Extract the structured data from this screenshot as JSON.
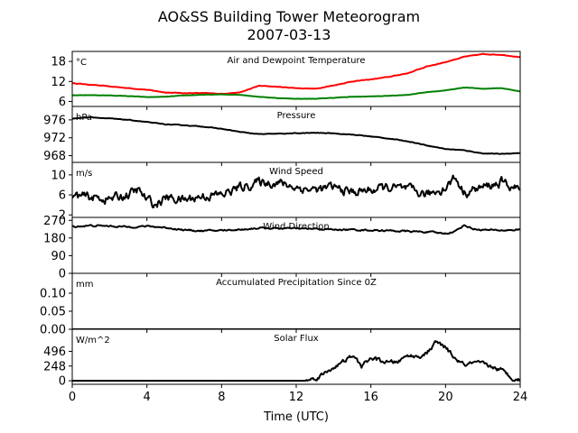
{
  "figure": {
    "title_line1": "AO&SS Building Tower Meteorogram",
    "title_line2": "2007-03-13",
    "xlabel": "Time (UTC)"
  },
  "chart_data": {
    "type": "line",
    "xlim": [
      0,
      24
    ],
    "xticks": [
      0,
      4,
      8,
      12,
      16,
      20,
      24
    ],
    "panels": [
      {
        "id": "temperature",
        "label": "Air and Dewpoint Temperature",
        "unit": "°C",
        "ylim": [
          4.5,
          21
        ],
        "yticks": [
          6,
          12,
          18
        ],
        "series": [
          {
            "color": "#ff0000",
            "noise": 0.08,
            "x": [
              0,
              1,
              2,
              3,
              4,
              5,
              6,
              7,
              8,
              9,
              10,
              11,
              12,
              13,
              14,
              15,
              16,
              17,
              18,
              19,
              20,
              21,
              22,
              23,
              24
            ],
            "y": [
              11.5,
              11.0,
              10.5,
              10.0,
              9.5,
              8.7,
              8.5,
              8.5,
              8.3,
              8.7,
              10.7,
              10.4,
              10.0,
              9.8,
              10.8,
              12.0,
              12.6,
              13.4,
              14.5,
              16.5,
              17.8,
              19.4,
              20.2,
              20.0,
              19.3
            ]
          },
          {
            "color": "#008000",
            "noise": 0.05,
            "x": [
              0,
              1,
              2,
              3,
              4,
              5,
              6,
              7,
              8,
              9,
              10,
              11,
              12,
              13,
              14,
              15,
              16,
              17,
              18,
              19,
              20,
              21,
              22,
              23,
              24
            ],
            "y": [
              7.8,
              7.9,
              7.8,
              7.6,
              7.3,
              7.4,
              7.8,
              8.0,
              8.1,
              8.0,
              7.4,
              7.0,
              6.8,
              6.8,
              7.1,
              7.4,
              7.5,
              7.7,
              8.0,
              8.8,
              9.3,
              10.2,
              9.8,
              10.0,
              9.0
            ]
          }
        ]
      },
      {
        "id": "pressure",
        "label": "Pressure",
        "unit": "hPa",
        "ylim": [
          966.5,
          979.0
        ],
        "yticks": [
          968,
          972,
          976
        ],
        "series": [
          {
            "color": "#000000",
            "noise": 0.06,
            "x": [
              0,
              1,
              2,
              3,
              4,
              5,
              6,
              7,
              8,
              9,
              10,
              11,
              12,
              13,
              14,
              15,
              16,
              17,
              18,
              19,
              20,
              21,
              22,
              23,
              24
            ],
            "y": [
              976.3,
              976.6,
              976.3,
              976.0,
              975.5,
              975.0,
              974.8,
              974.5,
              974.0,
              973.3,
              972.8,
              972.9,
              973.0,
              973.1,
              973.0,
              972.7,
              972.3,
              971.8,
              971.2,
              970.3,
              969.5,
              969.2,
              968.5,
              968.4,
              968.6
            ]
          }
        ]
      },
      {
        "id": "wind_speed",
        "label": "Wind Speed",
        "unit": "m/s",
        "ylim": [
          1.5,
          12.5
        ],
        "yticks": [
          2,
          6,
          10
        ],
        "series": [
          {
            "color": "#000000",
            "noise": 0.9,
            "x": [
              0,
              1,
              2,
              3,
              3.5,
              4,
              4.5,
              5,
              6,
              7,
              8,
              9,
              10,
              11,
              12,
              13,
              14,
              15,
              16,
              17,
              18,
              19,
              20,
              20.5,
              21,
              22,
              23,
              24
            ],
            "y": [
              5.8,
              5.5,
              5.2,
              6.0,
              7.0,
              5.0,
              4.0,
              5.5,
              5.0,
              5.8,
              6.0,
              7.5,
              8.5,
              8.5,
              7.5,
              7.0,
              7.5,
              6.5,
              7.0,
              7.5,
              7.0,
              6.0,
              7.5,
              9.5,
              6.5,
              7.5,
              8.5,
              7.0
            ]
          }
        ]
      },
      {
        "id": "wind_direction",
        "label": "Wind Direction",
        "unit": "",
        "ylim": [
          0,
          285
        ],
        "yticks": [
          0,
          90,
          180,
          270
        ],
        "series": [
          {
            "color": "#000000",
            "noise": 4,
            "x": [
              0,
              1,
              2,
              3,
              4,
              5,
              6,
              7,
              8,
              9,
              10,
              11,
              12,
              13,
              14,
              15,
              16,
              17,
              18,
              19,
              20,
              20.5,
              21,
              21.5,
              22,
              23,
              24
            ],
            "y": [
              238,
              243,
              241,
              236,
              240,
              233,
              221,
              216,
              219,
              223,
              231,
              229,
              228,
              226,
              223,
              222,
              220,
              217,
              214,
              211,
              203,
              213,
              246,
              226,
              221,
              219,
              222
            ]
          }
        ]
      },
      {
        "id": "precipitation",
        "label": "Accumulated Precipitation Since 0Z",
        "unit": "mm",
        "ylim": [
          0,
          0.155
        ],
        "yticks": [
          0.0,
          0.05,
          0.1
        ],
        "tick_format": "2dp",
        "series": [
          {
            "color": "#000000",
            "noise": 0,
            "x": [
              0,
              24
            ],
            "y": [
              0,
              0
            ]
          }
        ]
      },
      {
        "id": "solar_flux",
        "label": "Solar Flux",
        "unit": "W/m^2",
        "ylim": [
          -60,
          870
        ],
        "yticks": [
          0,
          248,
          496
        ],
        "series": [
          {
            "color": "#000000",
            "noise": 35,
            "x": [
              0,
              12.5,
              13,
              13.5,
              14,
              14.5,
              15,
              15.5,
              16,
              17,
              17.5,
              18,
              18.5,
              19,
              19.5,
              20,
              20.5,
              21,
              21.5,
              22,
              22.5,
              23,
              23.5,
              24
            ],
            "y": [
              0,
              0,
              40,
              120,
              230,
              310,
              420,
              250,
              380,
              300,
              330,
              430,
              400,
              470,
              650,
              560,
              380,
              260,
              300,
              280,
              230,
              180,
              60,
              10
            ]
          }
        ]
      }
    ]
  }
}
